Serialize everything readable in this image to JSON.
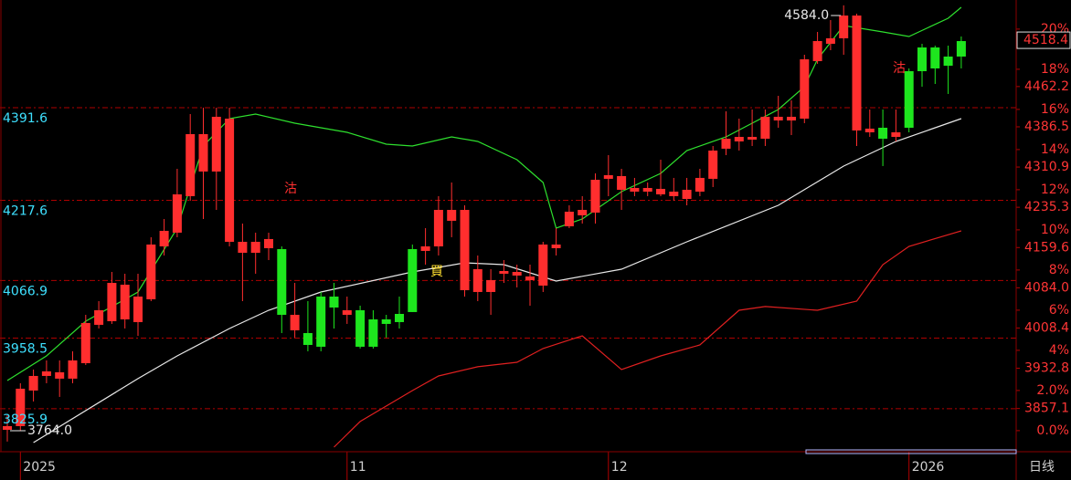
{
  "chart_data": {
    "type": "candlestick",
    "timeframe": "日线",
    "categories": [
      null,
      "2025",
      null,
      null,
      null,
      null,
      null,
      null,
      null,
      null,
      null,
      null,
      null,
      null,
      null,
      null,
      null,
      null,
      null,
      null,
      null,
      null,
      null,
      null,
      null,
      null,
      "11",
      null,
      null,
      null,
      null,
      null,
      null,
      null,
      null,
      null,
      null,
      null,
      null,
      null,
      null,
      null,
      null,
      null,
      null,
      null,
      "12",
      null,
      null,
      null,
      null,
      null,
      null,
      null,
      null,
      null,
      null,
      null,
      null,
      null,
      null,
      null,
      null,
      null,
      null,
      null,
      null,
      null,
      null,
      "2026",
      null,
      null,
      null,
      null
    ],
    "candles": [
      [
        3786.2,
        3813.7,
        3764.0,
        3793.1
      ],
      [
        3793.1,
        3873.7,
        3784.5,
        3863.4
      ],
      [
        3860.0,
        3899.4,
        3839.4,
        3887.4
      ],
      [
        3887.4,
        3916.6,
        3873.7,
        3896.0
      ],
      [
        3882.3,
        3916.6,
        3848.0,
        3894.3
      ],
      [
        3882.3,
        3933.7,
        3873.7,
        3916.6
      ],
      [
        3911.4,
        4002.3,
        3908.0,
        3986.9
      ],
      [
        3983.5,
        4028.0,
        3976.6,
        4010.9
      ],
      [
        3990.3,
        4082.9,
        3985.2,
        4062.3
      ],
      [
        3993.7,
        4079.5,
        3976.6,
        4058.9
      ],
      [
        3988.6,
        4079.5,
        3962.9,
        4036.6
      ],
      [
        4031.5,
        4148.1,
        4028.0,
        4134.4
      ],
      [
        4130.9,
        4182.4,
        4113.8,
        4160.1
      ],
      [
        4156.7,
        4276.7,
        4148.1,
        4228.7
      ],
      [
        4225.3,
        4379.6,
        4216.7,
        4341.9
      ],
      [
        4271.6,
        4391.6,
        4182.4,
        4341.9
      ],
      [
        4271.6,
        4391.6,
        4199.5,
        4374.5
      ],
      [
        4139.5,
        4391.6,
        4130.9,
        4371.0
      ],
      [
        4118.9,
        4173.8,
        4028.0,
        4139.5
      ],
      [
        4118.9,
        4156.7,
        4079.5,
        4139.5
      ],
      [
        4127.5,
        4156.7,
        4105.2,
        4144.7
      ],
      [
        4125.8,
        4130.9,
        3968.0,
        4002.3
      ],
      [
        3973.2,
        4062.3,
        3959.4,
        4002.3
      ],
      [
        3968.0,
        4028.0,
        3933.7,
        3945.7
      ],
      [
        4036.6,
        4045.2,
        3933.7,
        3942.3
      ],
      [
        4036.6,
        4062.3,
        3976.6,
        4016.0
      ],
      [
        4002.3,
        4036.6,
        3985.2,
        4010.9
      ],
      [
        4010.9,
        4019.5,
        3938.9,
        3942.3
      ],
      [
        3993.7,
        4010.9,
        3938.9,
        3942.3
      ],
      [
        3993.7,
        4002.3,
        3959.4,
        3985.2
      ],
      [
        4004.0,
        4036.6,
        3976.6,
        3988.6
      ],
      [
        4125.8,
        4134.4,
        4007.5,
        4007.5
      ],
      [
        4122.4,
        4165.2,
        4096.6,
        4130.9
      ],
      [
        4130.9,
        4225.3,
        4113.8,
        4199.5
      ],
      [
        4179.0,
        4251.0,
        4148.1,
        4199.5
      ],
      [
        4048.6,
        4208.1,
        4036.6,
        4199.5
      ],
      [
        4045.2,
        4113.8,
        4028.0,
        4088.1
      ],
      [
        4045.2,
        4088.1,
        4002.3,
        4067.5
      ],
      [
        4079.5,
        4105.2,
        4062.3,
        4084.6
      ],
      [
        4076.1,
        4096.6,
        4053.8,
        4082.9
      ],
      [
        4067.5,
        4096.6,
        4019.5,
        4074.4
      ],
      [
        4057.2,
        4139.5,
        4045.2,
        4134.4
      ],
      [
        4127.5,
        4165.2,
        4113.8,
        4134.4
      ],
      [
        4168.7,
        4208.1,
        4165.2,
        4196.1
      ],
      [
        4189.3,
        4225.3,
        4173.8,
        4199.5
      ],
      [
        4194.4,
        4268.1,
        4173.8,
        4256.1
      ],
      [
        4257.9,
        4302.4,
        4225.3,
        4264.7
      ],
      [
        4237.3,
        4276.7,
        4199.5,
        4263.0
      ],
      [
        4233.8,
        4259.6,
        4225.3,
        4240.7
      ],
      [
        4233.8,
        4251.0,
        4225.3,
        4240.7
      ],
      [
        4228.7,
        4293.9,
        4225.3,
        4239.0
      ],
      [
        4225.3,
        4259.6,
        4216.7,
        4233.8
      ],
      [
        4220.1,
        4259.6,
        4208.1,
        4237.3
      ],
      [
        4233.8,
        4276.7,
        4225.3,
        4259.6
      ],
      [
        4257.9,
        4319.6,
        4242.4,
        4311.0
      ],
      [
        4314.5,
        4384.8,
        4302.4,
        4333.3
      ],
      [
        4328.2,
        4371.0,
        4311.0,
        4336.7
      ],
      [
        4331.6,
        4388.2,
        4319.6,
        4336.7
      ],
      [
        4333.3,
        4388.2,
        4319.6,
        4374.5
      ],
      [
        4367.6,
        4413.9,
        4353.9,
        4374.5
      ],
      [
        4367.6,
        4405.3,
        4340.2,
        4374.5
      ],
      [
        4371.0,
        4491.1,
        4362.5,
        4482.5
      ],
      [
        4479.1,
        4534.0,
        4474.0,
        4516.8
      ],
      [
        4511.7,
        4556.3,
        4499.7,
        4522.0
      ],
      [
        4522.0,
        4584.0,
        4491.1,
        4564.8
      ],
      [
        4348.8,
        4568.3,
        4319.6,
        4564.8
      ],
      [
        4345.3,
        4388.2,
        4336.7,
        4352.2
      ],
      [
        4353.9,
        4388.2,
        4281.9,
        4333.3
      ],
      [
        4336.7,
        4388.2,
        4328.2,
        4345.3
      ],
      [
        4460.2,
        4465.4,
        4345.3,
        4353.9
      ],
      [
        4504.8,
        4511.7,
        4431.1,
        4460.2
      ],
      [
        4504.8,
        4508.2,
        4436.2,
        4465.4
      ],
      [
        4487.7,
        4508.2,
        4417.4,
        4470.5
      ],
      [
        4516.8,
        4525.4,
        4465.4,
        4487.7
      ]
    ],
    "up_color": "#ff2e2e",
    "down_color": "#1ee61e",
    "ylim": [
      3745,
      4594
    ],
    "yticks": [
      4391.6,
      4217.6,
      4066.9,
      3958.5,
      3825.9
    ],
    "grid": true,
    "right_labels": [
      4462.2,
      4386.5,
      4310.9,
      4235.3,
      4159.6,
      {
        "value": 4084.0,
        "label": "4084.0"
      },
      4008.4,
      3932.8,
      3857.1
    ],
    "last_price": 4518.4,
    "y2lim": [
      -1.05,
      21.45
    ],
    "y2ticks": [
      {
        "value": 0,
        "label": "0.0%"
      },
      {
        "value": 2,
        "label": "2.0%"
      },
      {
        "value": 4,
        "label": "4%"
      },
      {
        "value": 6,
        "label": "6%"
      },
      {
        "value": 8,
        "label": "8%"
      },
      {
        "value": 10,
        "label": "10%"
      },
      {
        "value": 12,
        "label": "12%"
      },
      {
        "value": 14,
        "label": "14%"
      },
      {
        "value": 16,
        "label": "16%"
      },
      {
        "value": 18,
        "label": "18%"
      },
      {
        "value": 20,
        "label": "20%"
      }
    ],
    "high_label": {
      "value": 4584.0,
      "label": "4584.0"
    },
    "low_label": {
      "value": 3764.0,
      "label": "3764.0"
    },
    "signals": [
      "沽",
      "買",
      "沽"
    ],
    "lines": [
      {
        "color": "#2ee02e",
        "x": [
          0,
          3,
          6,
          10,
          13,
          15,
          17,
          19,
          22,
          26,
          29,
          31,
          34,
          36,
          39,
          41,
          42,
          44,
          47,
          50,
          52,
          55,
          59,
          61,
          62,
          64,
          67,
          69,
          72,
          73
        ],
        "values": [
          3878.8,
          3925.1,
          3990.3,
          4045.2,
          4165.2,
          4319.6,
          4371.0,
          4379.6,
          4362.5,
          4345.3,
          4323.0,
          4319.6,
          4336.7,
          4328.2,
          4293.9,
          4251.0,
          4165.2,
          4182.4,
          4233.8,
          4268.1,
          4311.0,
          4336.7,
          4388.2,
          4431.1,
          4482.5,
          4546.0,
          4534.0,
          4525.4,
          4559.7,
          4580.3
        ]
      },
      {
        "color": "#e8e8e8",
        "x": [
          2,
          10,
          13,
          17,
          20,
          24,
          31,
          35,
          38,
          42,
          47,
          52,
          59,
          64,
          68,
          73
        ],
        "values": [
          3762.2,
          3882.3,
          3925.1,
          3976.6,
          4010.9,
          4045.2,
          4082.9,
          4100.1,
          4096.6,
          4065.8,
          4088.1,
          4139.5,
          4208.1,
          4281.9,
          4328.2,
          4371.0
        ]
      },
      {
        "color": "#e02020",
        "x": [
          25,
          27,
          31,
          33,
          36,
          39,
          41,
          44,
          47,
          50,
          53,
          56,
          58,
          62,
          65,
          67,
          69,
          73
        ],
        "values": [
          3753.6,
          3801.7,
          3860.0,
          3887.4,
          3904.6,
          3913.1,
          3938.9,
          3962.9,
          3899.4,
          3925.1,
          3945.7,
          4010.9,
          4017.8,
          4010.9,
          4028.0,
          4096.6,
          4130.9,
          4160.1
        ]
      }
    ]
  }
}
